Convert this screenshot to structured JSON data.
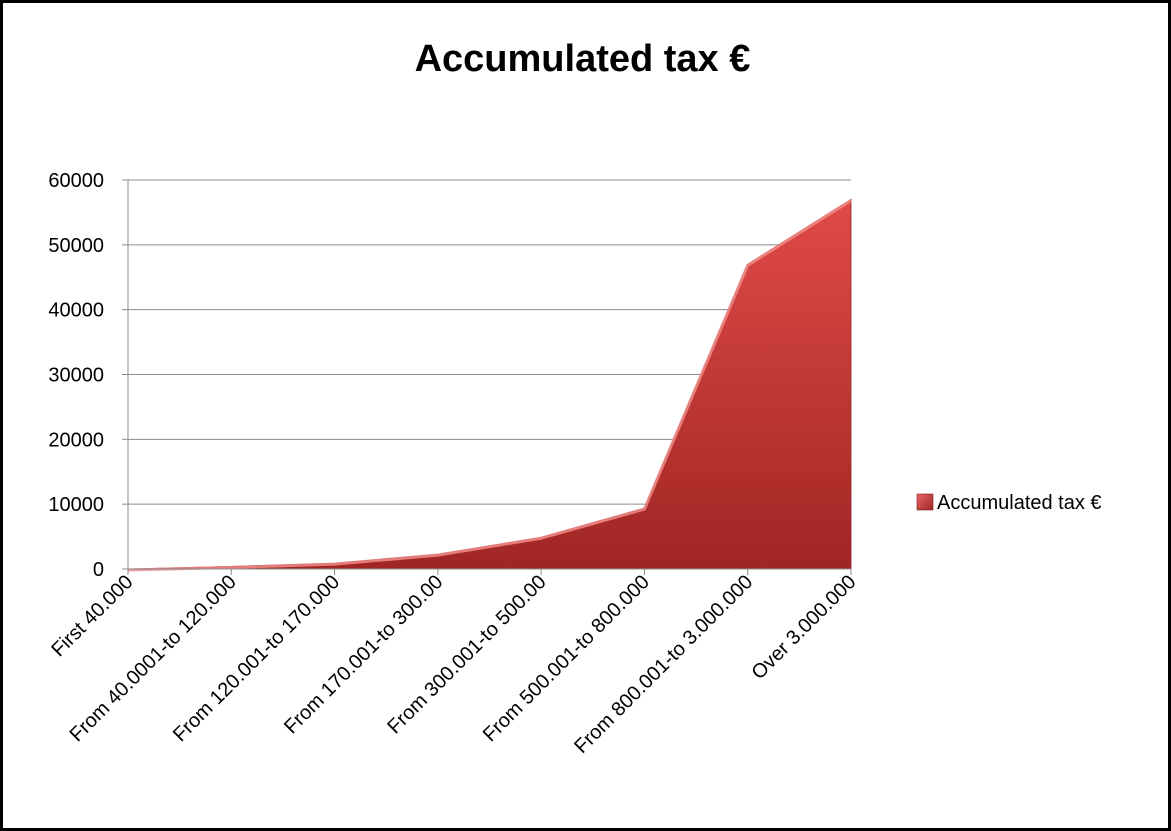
{
  "chart_data": {
    "type": "area",
    "title": "Accumulated tax €",
    "xlabel": "",
    "ylabel": "",
    "categories": [
      "First 40.000",
      "From 40.0001-to 120.000",
      "From 120.001-to 170.000",
      "From 170.001-to 300.00",
      "From 300.001-to 500.00",
      "From 500.001-to 800.000",
      "From 800.001-to 3.000.000",
      "Over 3.000.000"
    ],
    "series": [
      {
        "name": "Accumulated tax €",
        "values": [
          0,
          400,
          900,
          2300,
          4900,
          9400,
          47000,
          57000
        ]
      }
    ],
    "ylim": [
      0,
      60000
    ],
    "yticks": [
      "0",
      "10000",
      "20000",
      "30000",
      "40000",
      "50000",
      "60000"
    ],
    "grid": true,
    "legend_position": "right",
    "colors": {
      "fill_light": "#e04a48",
      "fill_dark": "#a02624",
      "edge": "#f08c8a",
      "grid": "#8c8c8c"
    }
  }
}
